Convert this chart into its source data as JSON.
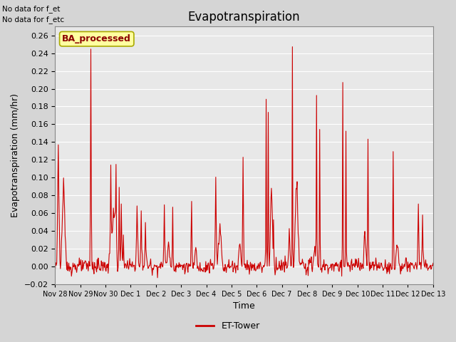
{
  "title": "Evapotranspiration",
  "xlabel": "Time",
  "ylabel": "Evapotranspiration (mm/hr)",
  "ylim": [
    -0.02,
    0.27
  ],
  "yticks": [
    -0.02,
    0.0,
    0.02,
    0.04,
    0.06,
    0.08,
    0.1,
    0.12,
    0.14,
    0.16,
    0.18,
    0.2,
    0.22,
    0.24,
    0.26
  ],
  "line_color": "#cc0000",
  "line_width": 0.8,
  "fig_bg_color": "#d5d5d5",
  "plot_bg_color": "#e8e8e8",
  "grid_color": "#ffffff",
  "no_data_text1": "No data for f_et",
  "no_data_text2": "No data for f_etc",
  "legend_label": "ET-Tower",
  "ba_processed_label": "BA_processed",
  "title_fontsize": 12,
  "axis_fontsize": 9,
  "tick_fontsize": 8
}
